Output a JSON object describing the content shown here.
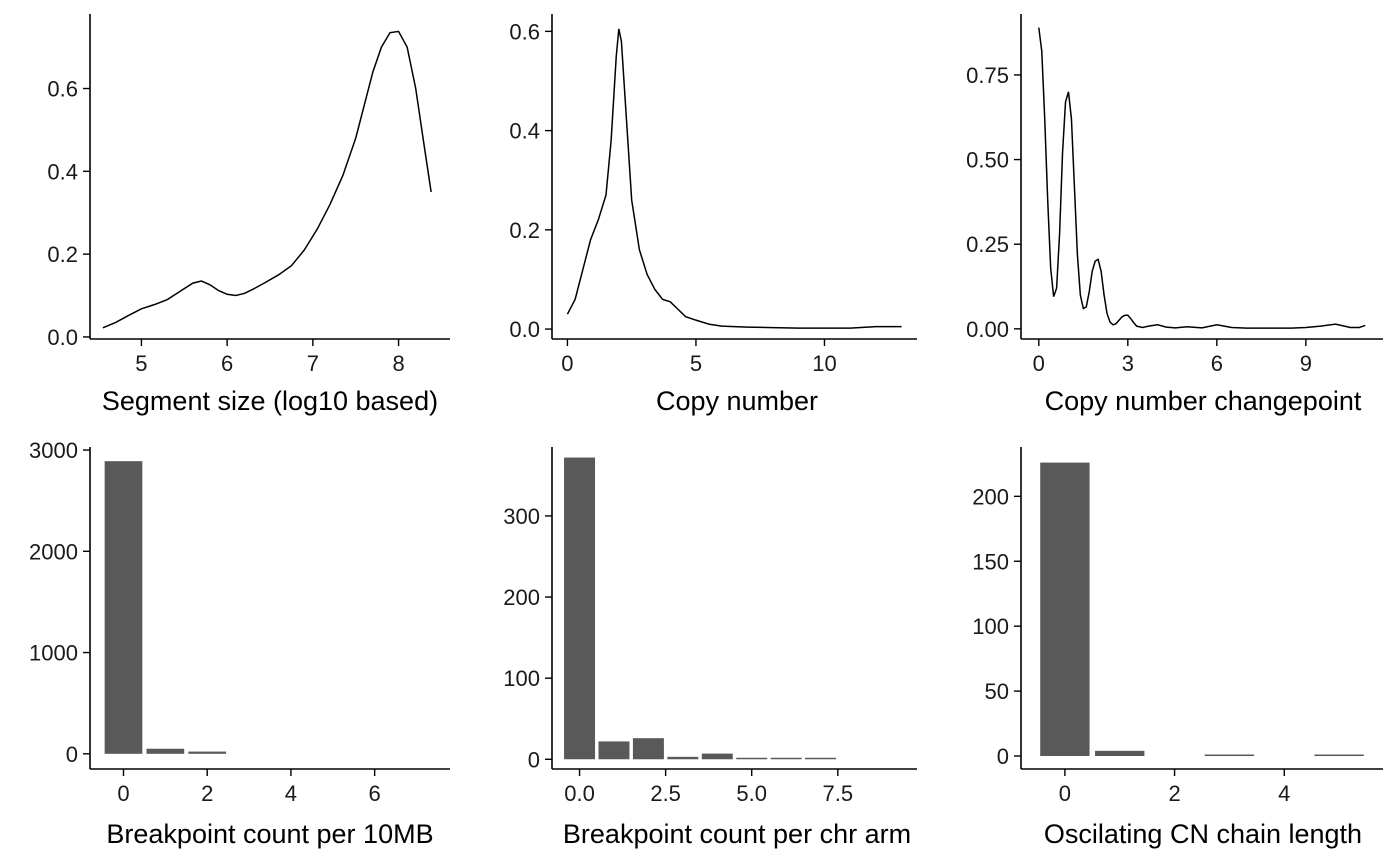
{
  "chart_data": [
    {
      "type": "line",
      "xlabel": "Segment size (log10 based)",
      "xlim": [
        4.4,
        8.6
      ],
      "ylim": [
        -0.005,
        0.78
      ],
      "xticks": [
        5,
        6,
        7,
        8
      ],
      "yticks": [
        0.0,
        0.2,
        0.4,
        0.6
      ],
      "ytick_labels": [
        "0.0",
        "0.2",
        "0.4",
        "0.6"
      ],
      "x": [
        4.55,
        4.7,
        4.85,
        5.0,
        5.15,
        5.3,
        5.45,
        5.6,
        5.7,
        5.8,
        5.9,
        6.0,
        6.1,
        6.2,
        6.3,
        6.45,
        6.6,
        6.75,
        6.9,
        7.05,
        7.2,
        7.35,
        7.5,
        7.6,
        7.7,
        7.8,
        7.9,
        8.0,
        8.1,
        8.2,
        8.3,
        8.38
      ],
      "y": [
        0.022,
        0.035,
        0.052,
        0.068,
        0.078,
        0.09,
        0.11,
        0.13,
        0.135,
        0.126,
        0.112,
        0.103,
        0.1,
        0.105,
        0.115,
        0.132,
        0.15,
        0.172,
        0.21,
        0.26,
        0.32,
        0.39,
        0.48,
        0.56,
        0.64,
        0.7,
        0.735,
        0.738,
        0.7,
        0.6,
        0.46,
        0.35
      ]
    },
    {
      "type": "line",
      "xlabel": "Copy number",
      "xlim": [
        -0.6,
        13.6
      ],
      "ylim": [
        -0.02,
        0.635
      ],
      "xticks": [
        0,
        5,
        10
      ],
      "yticks": [
        0.0,
        0.2,
        0.4,
        0.6
      ],
      "ytick_labels": [
        "0.0",
        "0.2",
        "0.4",
        "0.6"
      ],
      "x": [
        0.0,
        0.3,
        0.6,
        0.9,
        1.2,
        1.5,
        1.7,
        1.9,
        2.0,
        2.1,
        2.3,
        2.5,
        2.8,
        3.1,
        3.4,
        3.7,
        4.0,
        4.3,
        4.6,
        5.0,
        5.5,
        6.0,
        7.0,
        8.0,
        9.0,
        10.0,
        11.0,
        12.0,
        13.0
      ],
      "y": [
        0.03,
        0.06,
        0.12,
        0.18,
        0.22,
        0.27,
        0.38,
        0.55,
        0.605,
        0.58,
        0.42,
        0.26,
        0.16,
        0.11,
        0.08,
        0.06,
        0.055,
        0.04,
        0.025,
        0.018,
        0.01,
        0.006,
        0.004,
        0.003,
        0.002,
        0.002,
        0.002,
        0.005,
        0.005
      ]
    },
    {
      "type": "line",
      "xlabel": "Copy number changepoint",
      "xlim": [
        -0.6,
        11.6
      ],
      "ylim": [
        -0.03,
        0.93
      ],
      "xticks": [
        0,
        3,
        6,
        9
      ],
      "yticks": [
        0.0,
        0.25,
        0.5,
        0.75
      ],
      "ytick_labels": [
        "0.00",
        "0.25",
        "0.50",
        "0.75"
      ],
      "x": [
        0.0,
        0.1,
        0.2,
        0.3,
        0.4,
        0.5,
        0.6,
        0.7,
        0.8,
        0.9,
        1.0,
        1.1,
        1.2,
        1.3,
        1.4,
        1.5,
        1.6,
        1.7,
        1.8,
        1.9,
        2.0,
        2.1,
        2.2,
        2.3,
        2.4,
        2.5,
        2.6,
        2.7,
        2.8,
        2.9,
        3.0,
        3.1,
        3.2,
        3.3,
        3.5,
        3.7,
        4.0,
        4.3,
        4.6,
        5.0,
        5.5,
        6.0,
        6.5,
        7.0,
        7.5,
        8.0,
        8.5,
        9.0,
        9.5,
        10.0,
        10.5,
        10.8,
        11.0
      ],
      "y": [
        0.89,
        0.82,
        0.62,
        0.38,
        0.18,
        0.095,
        0.12,
        0.28,
        0.52,
        0.67,
        0.7,
        0.62,
        0.42,
        0.22,
        0.1,
        0.06,
        0.065,
        0.11,
        0.17,
        0.2,
        0.205,
        0.17,
        0.1,
        0.045,
        0.02,
        0.012,
        0.015,
        0.025,
        0.035,
        0.04,
        0.04,
        0.03,
        0.018,
        0.008,
        0.004,
        0.008,
        0.012,
        0.005,
        0.003,
        0.006,
        0.003,
        0.012,
        0.004,
        0.002,
        0.002,
        0.002,
        0.002,
        0.004,
        0.008,
        0.014,
        0.004,
        0.004,
        0.01
      ]
    },
    {
      "type": "bar",
      "xlabel": "Breakpoint count per 10MB",
      "xlim": [
        -0.8,
        7.8
      ],
      "ylim": [
        -150,
        3030
      ],
      "xticks": [
        0,
        2,
        4,
        6
      ],
      "yticks": [
        0,
        1000,
        2000,
        3000
      ],
      "ytick_labels": [
        "0",
        "1000",
        "2000",
        "3000"
      ],
      "bar_width": 0.9,
      "x": [
        0,
        1,
        2,
        3,
        4,
        5,
        6,
        7
      ],
      "values": [
        2890,
        50,
        22,
        0,
        0,
        0,
        0,
        0
      ]
    },
    {
      "type": "bar",
      "xlabel": "Breakpoint count per chr arm",
      "xlim": [
        -0.8,
        9.8
      ],
      "ylim": [
        -12,
        385
      ],
      "xticks": [
        0,
        2.5,
        5,
        7.5
      ],
      "yticks": [
        0,
        100,
        200,
        300
      ],
      "ytick_labels": [
        "0",
        "100",
        "200",
        "300"
      ],
      "xtick_labels": [
        "0.0",
        "2.5",
        "5.0",
        "7.5"
      ],
      "bar_width": 0.9,
      "x": [
        0,
        1,
        2,
        3,
        4,
        5,
        6,
        7
      ],
      "values": [
        372,
        22,
        26,
        3,
        7,
        1,
        1,
        1
      ]
    },
    {
      "type": "bar",
      "xlabel": "Oscilating CN chain length",
      "xlim": [
        -0.8,
        5.8
      ],
      "ylim": [
        -10,
        238
      ],
      "xticks": [
        0,
        2,
        4
      ],
      "yticks": [
        0,
        50,
        100,
        150,
        200
      ],
      "ytick_labels": [
        "0",
        "50",
        "100",
        "150",
        "200"
      ],
      "bar_width": 0.9,
      "x": [
        0,
        1,
        2,
        3,
        4,
        5
      ],
      "values": [
        226,
        4,
        0,
        1,
        0,
        1
      ]
    }
  ]
}
